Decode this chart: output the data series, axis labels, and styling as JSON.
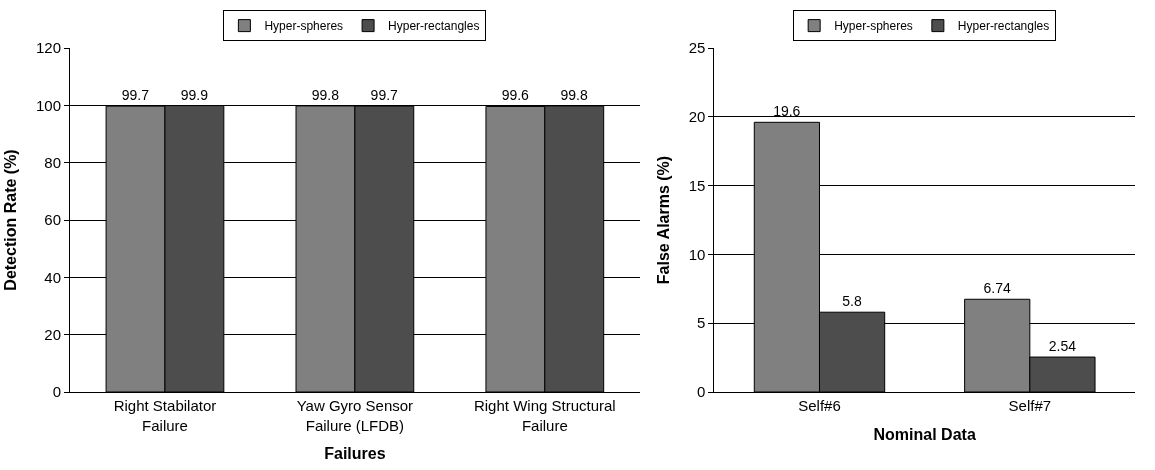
{
  "chart_data": [
    {
      "type": "bar",
      "xlabel": "Failures",
      "ylabel": "Detection Rate (%)",
      "categories": [
        "Right Stabilator\nFailure",
        "Yaw Gyro Sensor\nFailure (LFDB)",
        "Right Wing Structural\nFailure"
      ],
      "series": [
        {
          "name": "Hyper-spheres",
          "color": "#808080",
          "values": [
            99.7,
            99.8,
            99.6
          ]
        },
        {
          "name": "Hyper-rectangles",
          "color": "#4d4d4d",
          "values": [
            99.9,
            99.7,
            99.8
          ]
        }
      ],
      "ylim": [
        0,
        120
      ],
      "yticks": [
        0,
        20,
        40,
        60,
        80,
        100,
        120
      ],
      "grid": "y",
      "legend": "top",
      "data_labels": true
    },
    {
      "type": "bar",
      "xlabel": "Nominal Data",
      "ylabel": "False Alarms (%)",
      "categories": [
        "Self#6",
        "Self#7"
      ],
      "series": [
        {
          "name": "Hyper-spheres",
          "color": "#808080",
          "values": [
            19.6,
            6.74
          ]
        },
        {
          "name": "Hyper-rectangles",
          "color": "#4d4d4d",
          "values": [
            5.8,
            2.54
          ]
        }
      ],
      "ylim": [
        0,
        25
      ],
      "yticks": [
        0,
        5,
        10,
        15,
        20,
        25
      ],
      "grid": "y",
      "legend": "top",
      "data_labels": true
    }
  ]
}
